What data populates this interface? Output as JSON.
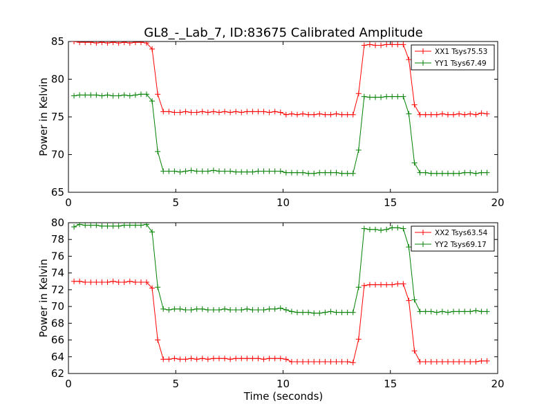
{
  "title": "GL8_-_Lab_7, ID:83675 Calibrated Amplitude",
  "xlabel": "Time (seconds)",
  "colors": {
    "red": "#ff0000",
    "green": "#008000"
  },
  "chart_data": [
    {
      "type": "line",
      "title": "GL8_-_Lab_7, ID:83675 Calibrated Amplitude",
      "xlabel": "",
      "ylabel": "Power in Kelvin",
      "xlim": [
        0,
        20
      ],
      "ylim": [
        65,
        85
      ],
      "xticks": [
        "0",
        "5",
        "10",
        "15",
        "20"
      ],
      "yticks": [
        "65",
        "70",
        "75",
        "80",
        "85"
      ],
      "xtick_values": [
        0,
        5,
        10,
        15,
        20
      ],
      "ytick_values": [
        65,
        70,
        75,
        80,
        85
      ],
      "grid": false,
      "legend": "top-right",
      "series": [
        {
          "name": "XX1 Tsys75.53",
          "color": "#ff0000",
          "x": [
            0.26,
            0.52,
            0.78,
            1.04,
            1.3,
            1.56,
            1.82,
            2.08,
            2.34,
            2.6,
            2.86,
            3.12,
            3.38,
            3.64,
            3.9,
            4.16,
            4.42,
            4.68,
            4.94,
            5.2,
            5.46,
            5.72,
            5.98,
            6.24,
            6.5,
            6.76,
            7.02,
            7.28,
            7.54,
            7.8,
            8.06,
            8.32,
            8.58,
            8.84,
            9.1,
            9.36,
            9.62,
            9.88,
            10.14,
            10.4,
            10.66,
            10.92,
            11.18,
            11.44,
            11.7,
            11.96,
            12.22,
            12.48,
            12.74,
            13.0,
            13.26,
            13.52,
            13.78,
            14.04,
            14.3,
            14.56,
            14.82,
            15.08,
            15.34,
            15.6,
            15.86,
            16.12,
            16.38,
            16.64,
            16.9,
            17.16,
            17.42,
            17.68,
            17.94,
            18.2,
            18.46,
            18.72,
            18.98,
            19.24,
            19.5
          ],
          "values": [
            85.0,
            84.9,
            84.9,
            84.9,
            84.8,
            84.9,
            84.8,
            84.9,
            84.8,
            84.9,
            84.8,
            84.9,
            84.9,
            84.8,
            84.0,
            78.0,
            75.7,
            75.7,
            75.6,
            75.6,
            75.7,
            75.6,
            75.6,
            75.7,
            75.6,
            75.7,
            75.6,
            75.7,
            75.6,
            75.7,
            75.6,
            75.7,
            75.7,
            75.7,
            75.7,
            75.6,
            75.7,
            75.6,
            75.3,
            75.4,
            75.3,
            75.4,
            75.3,
            75.3,
            75.4,
            75.3,
            75.3,
            75.4,
            75.3,
            75.3,
            75.3,
            78.1,
            84.5,
            84.6,
            84.5,
            84.5,
            84.6,
            84.6,
            84.6,
            84.6,
            82.6,
            76.6,
            75.3,
            75.3,
            75.3,
            75.3,
            75.4,
            75.3,
            75.3,
            75.4,
            75.3,
            75.4,
            75.3,
            75.5,
            75.4
          ]
        },
        {
          "name": "YY1 Tsys67.49",
          "color": "#008000",
          "x": [
            0.26,
            0.52,
            0.78,
            1.04,
            1.3,
            1.56,
            1.82,
            2.08,
            2.34,
            2.6,
            2.86,
            3.12,
            3.38,
            3.64,
            3.9,
            4.16,
            4.42,
            4.68,
            4.94,
            5.2,
            5.46,
            5.72,
            5.98,
            6.24,
            6.5,
            6.76,
            7.02,
            7.28,
            7.54,
            7.8,
            8.06,
            8.32,
            8.58,
            8.84,
            9.1,
            9.36,
            9.62,
            9.88,
            10.14,
            10.4,
            10.66,
            10.92,
            11.18,
            11.44,
            11.7,
            11.96,
            12.22,
            12.48,
            12.74,
            13.0,
            13.26,
            13.52,
            13.78,
            14.04,
            14.3,
            14.56,
            14.82,
            15.08,
            15.34,
            15.6,
            15.86,
            16.12,
            16.38,
            16.64,
            16.9,
            17.16,
            17.42,
            17.68,
            17.94,
            18.2,
            18.46,
            18.72,
            18.98,
            19.24,
            19.5
          ],
          "values": [
            77.8,
            77.9,
            77.9,
            77.9,
            77.9,
            77.8,
            77.9,
            77.8,
            77.8,
            77.9,
            77.8,
            77.9,
            78.0,
            78.0,
            77.1,
            70.4,
            67.8,
            67.8,
            67.8,
            67.7,
            67.8,
            67.9,
            67.8,
            67.8,
            67.8,
            67.9,
            67.8,
            67.8,
            67.8,
            67.7,
            67.7,
            67.7,
            67.7,
            67.8,
            67.8,
            67.8,
            67.8,
            67.8,
            67.6,
            67.6,
            67.6,
            67.6,
            67.5,
            67.5,
            67.6,
            67.6,
            67.6,
            67.6,
            67.5,
            67.5,
            67.5,
            70.6,
            77.7,
            77.6,
            77.6,
            77.6,
            77.7,
            77.7,
            77.7,
            77.7,
            75.4,
            68.9,
            67.6,
            67.6,
            67.5,
            67.5,
            67.5,
            67.5,
            67.5,
            67.5,
            67.6,
            67.6,
            67.5,
            67.6,
            67.6
          ]
        }
      ]
    },
    {
      "type": "line",
      "title": "",
      "xlabel": "Time (seconds)",
      "ylabel": "Power in Kelvin",
      "xlim": [
        0,
        20
      ],
      "ylim": [
        62,
        80
      ],
      "xticks": [
        "0",
        "5",
        "10",
        "15",
        "20"
      ],
      "yticks": [
        "62",
        "64",
        "66",
        "68",
        "70",
        "72",
        "74",
        "76",
        "78",
        "80"
      ],
      "xtick_values": [
        0,
        5,
        10,
        15,
        20
      ],
      "ytick_values": [
        62,
        64,
        66,
        68,
        70,
        72,
        74,
        76,
        78,
        80
      ],
      "grid": false,
      "legend": "top-right",
      "series": [
        {
          "name": "XX2 Tsys63.54",
          "color": "#ff0000",
          "x": [
            0.26,
            0.52,
            0.78,
            1.04,
            1.3,
            1.56,
            1.82,
            2.08,
            2.34,
            2.6,
            2.86,
            3.12,
            3.38,
            3.64,
            3.9,
            4.16,
            4.42,
            4.68,
            4.94,
            5.2,
            5.46,
            5.72,
            5.98,
            6.24,
            6.5,
            6.76,
            7.02,
            7.28,
            7.54,
            7.8,
            8.06,
            8.32,
            8.58,
            8.84,
            9.1,
            9.36,
            9.62,
            9.88,
            10.14,
            10.4,
            10.66,
            10.92,
            11.18,
            11.44,
            11.7,
            11.96,
            12.22,
            12.48,
            12.74,
            13.0,
            13.26,
            13.52,
            13.78,
            14.04,
            14.3,
            14.56,
            14.82,
            15.08,
            15.34,
            15.6,
            15.86,
            16.12,
            16.38,
            16.64,
            16.9,
            17.16,
            17.42,
            17.68,
            17.94,
            18.2,
            18.46,
            18.72,
            18.98,
            19.24,
            19.5
          ],
          "values": [
            73.0,
            73.0,
            72.9,
            72.9,
            72.9,
            72.9,
            72.9,
            73.0,
            72.9,
            72.9,
            73.0,
            72.9,
            72.9,
            72.9,
            72.2,
            66.0,
            63.7,
            63.7,
            63.8,
            63.7,
            63.7,
            63.8,
            63.7,
            63.8,
            63.7,
            63.8,
            63.8,
            63.8,
            63.7,
            63.8,
            63.8,
            63.8,
            63.8,
            63.8,
            63.7,
            63.8,
            63.8,
            63.8,
            63.7,
            63.4,
            63.4,
            63.4,
            63.4,
            63.4,
            63.4,
            63.4,
            63.4,
            63.4,
            63.4,
            63.4,
            63.3,
            66.1,
            72.5,
            72.6,
            72.6,
            72.6,
            72.6,
            72.6,
            72.7,
            72.7,
            70.7,
            64.7,
            63.4,
            63.4,
            63.4,
            63.4,
            63.4,
            63.4,
            63.4,
            63.4,
            63.4,
            63.4,
            63.4,
            63.5,
            63.5
          ]
        },
        {
          "name": "YY2 Tsys69.17",
          "color": "#008000",
          "x": [
            0.26,
            0.52,
            0.78,
            1.04,
            1.3,
            1.56,
            1.82,
            2.08,
            2.34,
            2.6,
            2.86,
            3.12,
            3.38,
            3.64,
            3.9,
            4.16,
            4.42,
            4.68,
            4.94,
            5.2,
            5.46,
            5.72,
            5.98,
            6.24,
            6.5,
            6.76,
            7.02,
            7.28,
            7.54,
            7.8,
            8.06,
            8.32,
            8.58,
            8.84,
            9.1,
            9.36,
            9.62,
            9.88,
            10.14,
            10.4,
            10.66,
            10.92,
            11.18,
            11.44,
            11.7,
            11.96,
            12.22,
            12.48,
            12.74,
            13.0,
            13.26,
            13.52,
            13.78,
            14.04,
            14.3,
            14.56,
            14.82,
            15.08,
            15.34,
            15.6,
            15.86,
            16.12,
            16.38,
            16.64,
            16.9,
            17.16,
            17.42,
            17.68,
            17.94,
            18.2,
            18.46,
            18.72,
            18.98,
            19.24,
            19.5
          ],
          "values": [
            79.5,
            79.8,
            79.7,
            79.7,
            79.7,
            79.6,
            79.6,
            79.6,
            79.6,
            79.7,
            79.7,
            79.7,
            79.7,
            79.8,
            78.9,
            72.3,
            69.7,
            69.6,
            69.7,
            69.7,
            69.6,
            69.6,
            69.7,
            69.7,
            69.6,
            69.6,
            69.6,
            69.7,
            69.6,
            69.6,
            69.6,
            69.7,
            69.6,
            69.6,
            69.6,
            69.7,
            69.7,
            69.8,
            69.6,
            69.4,
            69.3,
            69.3,
            69.3,
            69.2,
            69.2,
            69.3,
            69.4,
            69.3,
            69.3,
            69.3,
            69.3,
            72.3,
            79.3,
            79.2,
            79.2,
            79.1,
            79.2,
            79.4,
            79.4,
            79.3,
            77.1,
            70.8,
            69.4,
            69.4,
            69.4,
            69.3,
            69.4,
            69.3,
            69.4,
            69.4,
            69.4,
            69.4,
            69.5,
            69.4,
            69.4
          ]
        }
      ]
    }
  ]
}
